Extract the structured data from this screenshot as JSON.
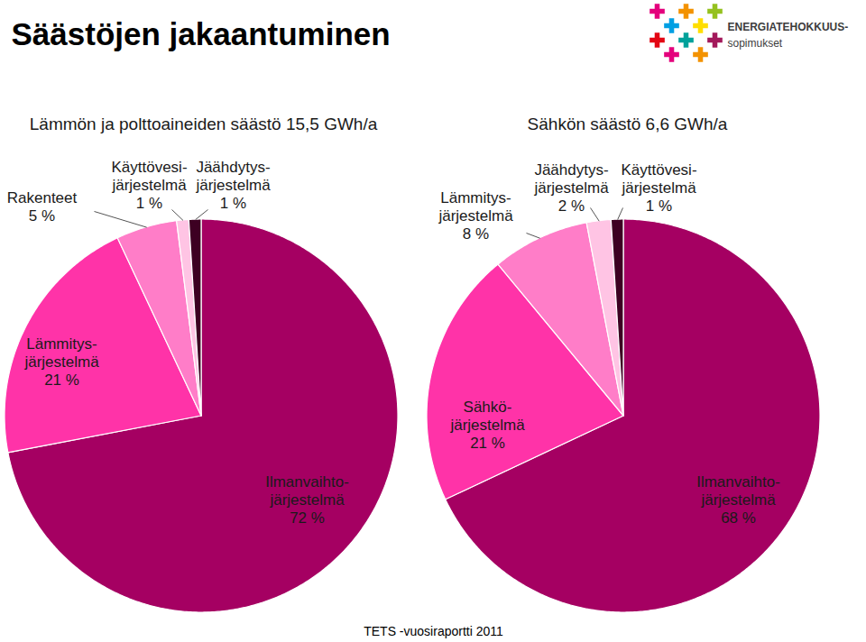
{
  "title": "Säästöjen jakaantuminen",
  "logo": {
    "line1": "ENERGIATEHOKKUUS-",
    "line2": "sopimukset"
  },
  "source": "TETS -vuosiraportti 2011",
  "chart_data": [
    {
      "type": "pie",
      "title": "Lämmön ja polttoaineiden säästö 15,5 GWh/a",
      "categories": [
        "Ilmanvaihto-järjestelmä",
        "Lämmitys-järjestelmä",
        "Rakenteet",
        "Käyttövesi-järjestelmä",
        "Jäähdytys-järjestelmä"
      ],
      "values": [
        72,
        21,
        5,
        1,
        1
      ],
      "value_labels": [
        "72 %",
        "21 %",
        "5 %",
        "1 %",
        "1 %"
      ],
      "colors": [
        "#a50062",
        "#ff33a8",
        "#ff7dc8",
        "#ffc4e4",
        "#3d0022"
      ],
      "data_labels": true
    },
    {
      "type": "pie",
      "title": "Sähkön säästö 6,6 GWh/a",
      "categories": [
        "Ilmanvaihto-järjestelmä",
        "Sähkö-järjestelmä",
        "Lämmitys-järjestelmä",
        "Jäähdytys-järjestelmä",
        "Käyttövesi-järjestelmä"
      ],
      "values": [
        68,
        21,
        8,
        2,
        1
      ],
      "value_labels": [
        "68 %",
        "21 %",
        "8 %",
        "2 %",
        "1 %"
      ],
      "colors": [
        "#a50062",
        "#ff33a8",
        "#ff7dc8",
        "#ffc4e4",
        "#3d0022"
      ],
      "data_labels": true
    }
  ]
}
